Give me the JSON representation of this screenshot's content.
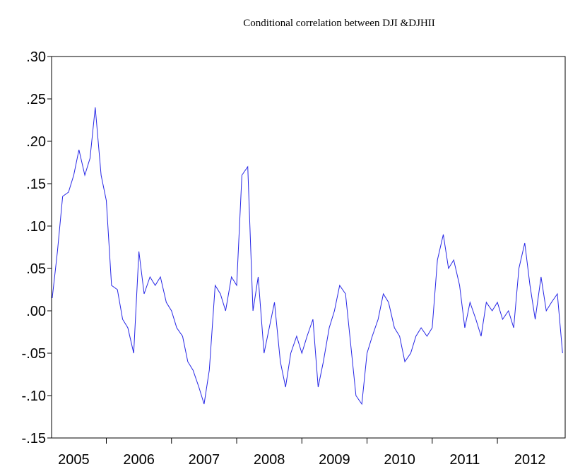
{
  "chart_data": {
    "type": "line",
    "title": "Conditional correlation between DJI &DJHII",
    "x": [
      2005.17,
      2005.25,
      2005.33,
      2005.42,
      2005.5,
      2005.58,
      2005.67,
      2005.75,
      2005.83,
      2005.92,
      2006.0,
      2006.08,
      2006.17,
      2006.25,
      2006.33,
      2006.42,
      2006.5,
      2006.58,
      2006.67,
      2006.75,
      2006.83,
      2006.92,
      2007.0,
      2007.08,
      2007.17,
      2007.25,
      2007.33,
      2007.42,
      2007.5,
      2007.58,
      2007.67,
      2007.75,
      2007.83,
      2007.92,
      2008.0,
      2008.08,
      2008.17,
      2008.25,
      2008.33,
      2008.42,
      2008.5,
      2008.58,
      2008.67,
      2008.75,
      2008.83,
      2008.92,
      2009.0,
      2009.08,
      2009.17,
      2009.25,
      2009.33,
      2009.42,
      2009.5,
      2009.58,
      2009.67,
      2009.75,
      2009.83,
      2009.92,
      2010.0,
      2010.08,
      2010.17,
      2010.25,
      2010.33,
      2010.42,
      2010.5,
      2010.58,
      2010.67,
      2010.75,
      2010.83,
      2010.92,
      2011.0,
      2011.08,
      2011.17,
      2011.25,
      2011.33,
      2011.42,
      2011.5,
      2011.58,
      2011.67,
      2011.75,
      2011.83,
      2011.92,
      2012.0,
      2012.08,
      2012.17,
      2012.25,
      2012.33,
      2012.42,
      2012.5,
      2012.58,
      2012.67,
      2012.75,
      2012.83,
      2012.92,
      2013.0
    ],
    "series": [
      {
        "color": "#2626e6",
        "values": [
          0.015,
          0.07,
          0.135,
          0.14,
          0.16,
          0.19,
          0.16,
          0.18,
          0.24,
          0.16,
          0.13,
          0.03,
          0.025,
          -0.01,
          -0.02,
          -0.05,
          0.07,
          0.02,
          0.04,
          0.03,
          0.04,
          0.01,
          0.0,
          -0.02,
          -0.03,
          -0.06,
          -0.07,
          -0.09,
          -0.11,
          -0.07,
          0.03,
          0.02,
          0.0,
          0.04,
          0.03,
          0.16,
          0.17,
          0.0,
          0.04,
          -0.05,
          -0.02,
          0.01,
          -0.06,
          -0.09,
          -0.05,
          -0.03,
          -0.05,
          -0.03,
          -0.01,
          -0.09,
          -0.06,
          -0.02,
          0.0,
          0.03,
          0.02,
          -0.04,
          -0.1,
          -0.11,
          -0.05,
          -0.03,
          -0.01,
          0.02,
          0.01,
          -0.02,
          -0.03,
          -0.06,
          -0.05,
          -0.03,
          -0.02,
          -0.03,
          -0.02,
          0.06,
          0.09,
          0.05,
          0.06,
          0.03,
          -0.02,
          0.01,
          -0.01,
          -0.03,
          0.01,
          0.0,
          0.01,
          -0.01,
          0.0,
          -0.02,
          0.05,
          0.08,
          0.03,
          -0.01,
          0.04,
          0.0,
          0.01,
          0.02,
          -0.05
        ]
      }
    ],
    "xlim": [
      2005.16,
      2013.04
    ],
    "xticks": [
      {
        "value": 2005.5,
        "label": "2005"
      },
      {
        "value": 2006.5,
        "label": "2006"
      },
      {
        "value": 2007.5,
        "label": "2007"
      },
      {
        "value": 2008.5,
        "label": "2008"
      },
      {
        "value": 2009.5,
        "label": "2009"
      },
      {
        "value": 2010.5,
        "label": "2010"
      },
      {
        "value": 2011.5,
        "label": "2011"
      },
      {
        "value": 2012.5,
        "label": "2012"
      }
    ],
    "xtick_marks": [
      2006,
      2007,
      2008,
      2009,
      2010,
      2011,
      2012
    ],
    "ylim": [
      -0.15,
      0.3
    ],
    "yticks": [
      {
        "value": -0.15,
        "label": "-.15"
      },
      {
        "value": -0.1,
        "label": "-.10"
      },
      {
        "value": -0.05,
        "label": "-.05"
      },
      {
        "value": 0,
        "label": ".00"
      },
      {
        "value": 0.05,
        "label": ".05"
      },
      {
        "value": 0.1,
        "label": ".10"
      },
      {
        "value": 0.15,
        "label": ".15"
      },
      {
        "value": 0.2,
        "label": ".20"
      },
      {
        "value": 0.25,
        "label": ".25"
      },
      {
        "value": 0.3,
        "label": ".30"
      }
    ]
  }
}
